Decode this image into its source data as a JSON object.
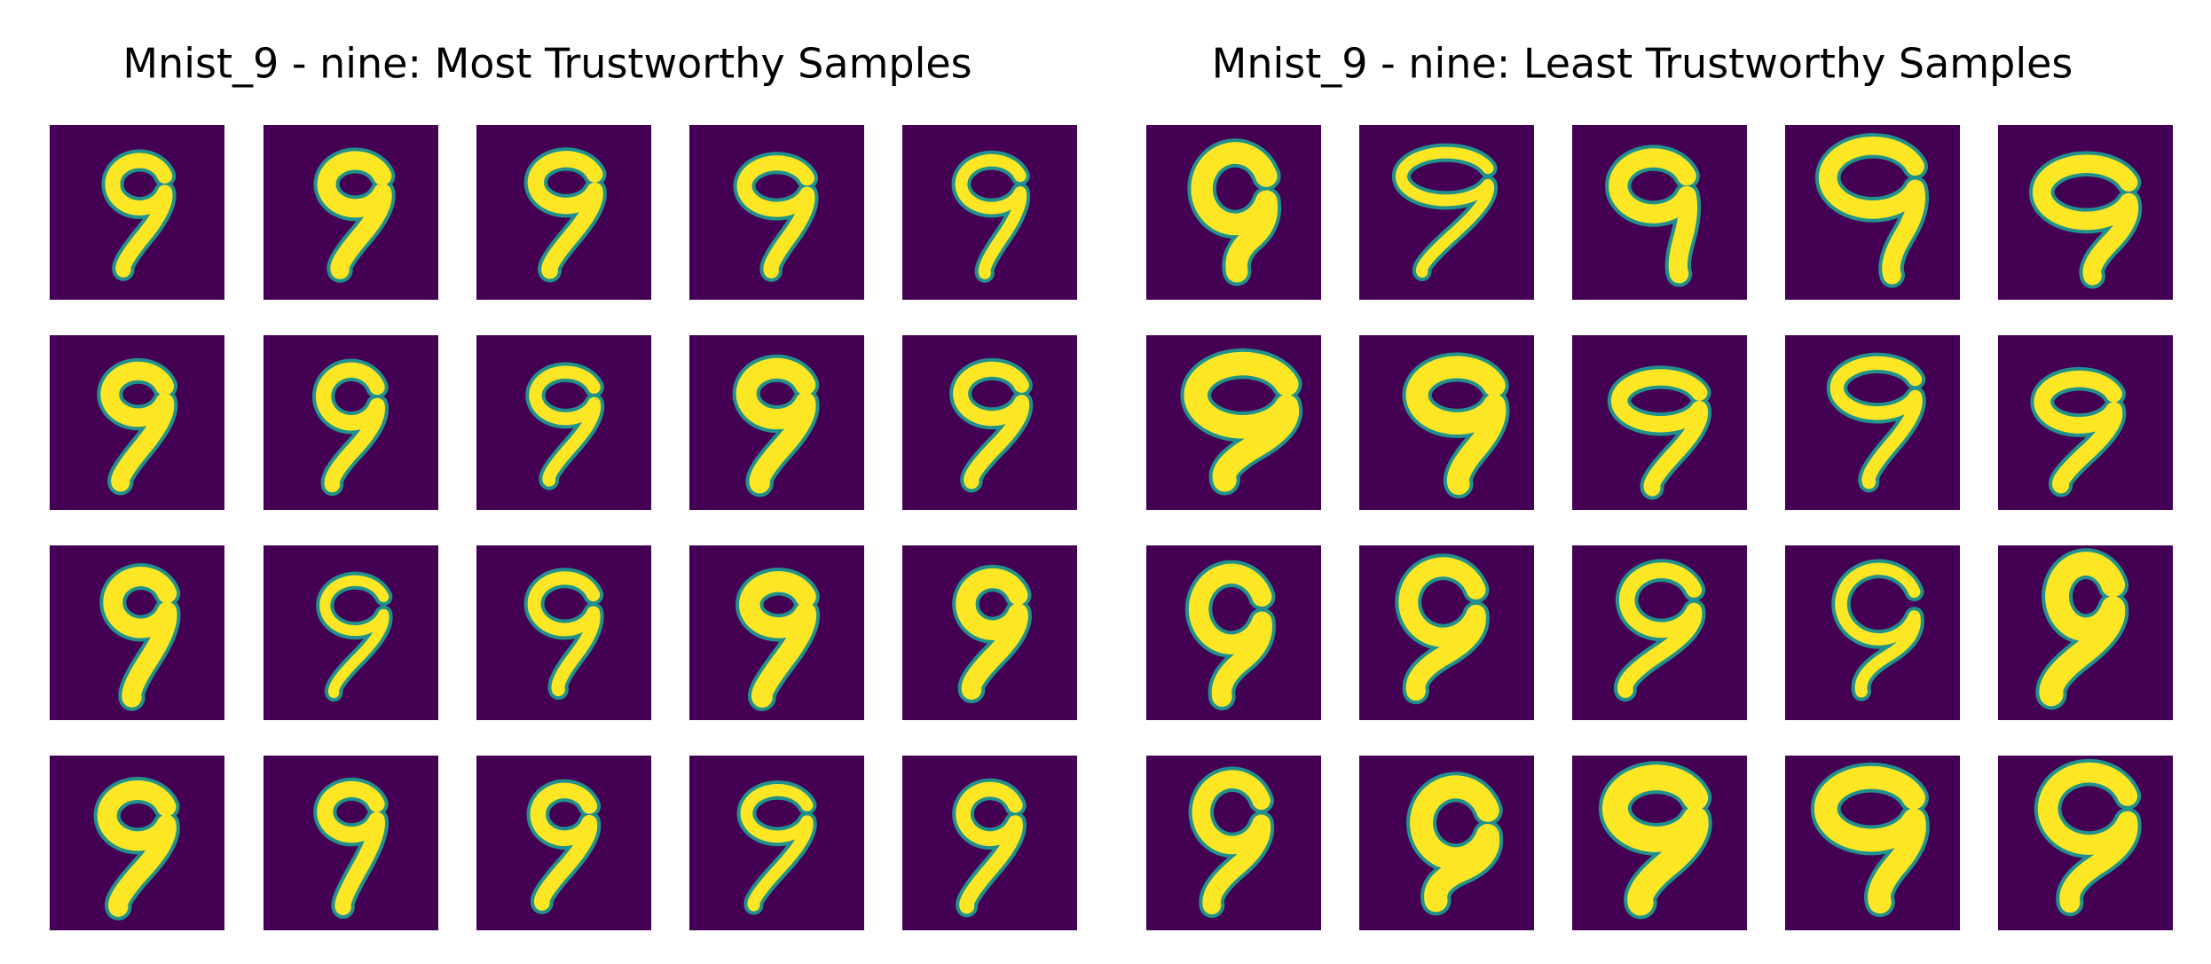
{
  "panels": [
    {
      "title": "Mnist_9 - nine: Most Trustworthy Samples"
    },
    {
      "title": "Mnist_9 - nine: Least Trustworthy Samples"
    }
  ]
}
